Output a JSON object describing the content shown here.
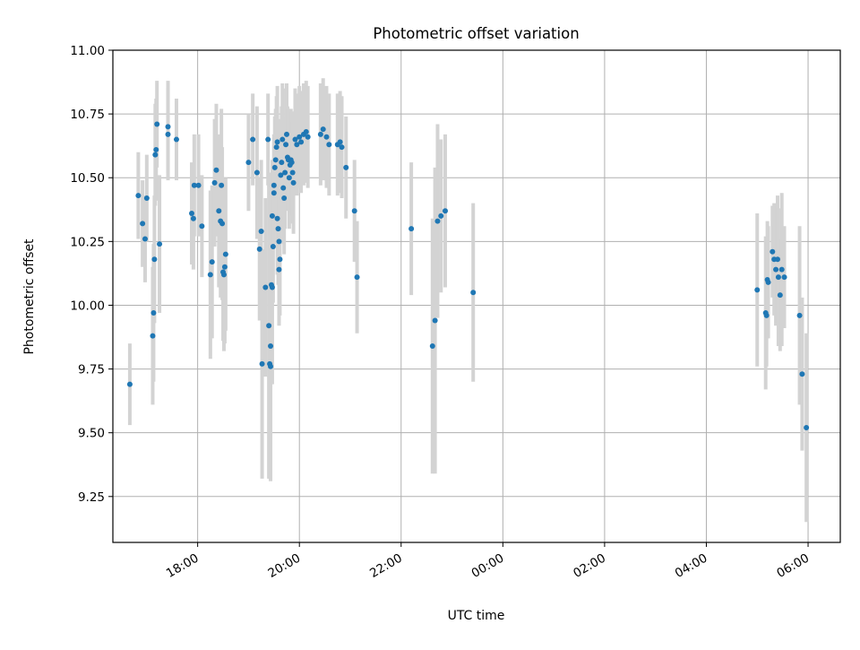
{
  "chart_data": {
    "type": "scatter",
    "title": "Photometric offset variation",
    "xlabel": "UTC time",
    "ylabel": "Photometric offset",
    "x_axis_kind": "time",
    "x_ticks": [
      "18:00",
      "20:00",
      "22:00",
      "00:00",
      "02:00",
      "04:00",
      "06:00"
    ],
    "y_ticks": [
      "9.25",
      "9.50",
      "9.75",
      "10.00",
      "10.25",
      "10.50",
      "10.75",
      "11.00"
    ],
    "ylim": [
      9.07,
      11.0
    ],
    "xlim": [
      "16:20",
      "06:38"
    ],
    "grid": true,
    "colors": {
      "points": "#1f77b4",
      "error_bars": "#d3d3d3",
      "grid": "#b0b0b0"
    },
    "series": [
      {
        "x": [
          "16:40",
          "16:50",
          "16:55",
          "16:58",
          "17:00",
          "17:07",
          "17:08",
          "17:09",
          "17:10",
          "17:11",
          "17:12",
          "17:15",
          "17:25",
          "17:25",
          "17:35",
          "17:53",
          "17:55",
          "17:56",
          "18:01",
          "18:05",
          "18:15",
          "18:17",
          "18:20",
          "18:22",
          "18:25",
          "18:27",
          "18:28",
          "18:29",
          "18:30",
          "18:31",
          "18:32",
          "18:33",
          "19:00",
          "19:05",
          "19:10",
          "19:13",
          "19:15",
          "19:16",
          "19:20",
          "19:23",
          "19:24",
          "19:25",
          "19:26",
          "19:26",
          "19:27",
          "19:28",
          "19:28",
          "19:29",
          "19:30",
          "19:30",
          "19:31",
          "19:32",
          "19:33",
          "19:34",
          "19:34",
          "19:35",
          "19:36",
          "19:36",
          "19:37",
          "19:38",
          "19:39",
          "19:40",
          "19:41",
          "19:42",
          "19:43",
          "19:44",
          "19:45",
          "19:46",
          "19:47",
          "19:48",
          "19:49",
          "19:50",
          "19:51",
          "19:52",
          "19:53",
          "19:55",
          "19:57",
          "20:00",
          "20:02",
          "20:05",
          "20:08",
          "20:10",
          "20:25",
          "20:28",
          "20:32",
          "20:35",
          "20:45",
          "20:48",
          "20:50",
          "20:55",
          "21:05",
          "21:08",
          "22:12",
          "22:37",
          "22:40",
          "22:43",
          "22:47",
          "22:52",
          "23:25",
          "05:00",
          "05:10",
          "05:11",
          "05:12",
          "05:13",
          "05:18",
          "05:20",
          "05:22",
          "05:24",
          "05:25",
          "05:27",
          "05:29",
          "05:32",
          "05:50",
          "05:53",
          "05:58"
        ],
        "y": [
          9.69,
          10.43,
          10.32,
          10.26,
          10.42,
          9.88,
          9.97,
          10.18,
          10.59,
          10.61,
          10.71,
          10.24,
          10.7,
          10.67,
          10.65,
          10.36,
          10.34,
          10.47,
          10.47,
          10.31,
          10.12,
          10.17,
          10.48,
          10.53,
          10.37,
          10.33,
          10.47,
          10.32,
          10.13,
          10.12,
          10.15,
          10.2,
          10.56,
          10.65,
          10.52,
          10.22,
          10.29,
          9.77,
          10.07,
          10.65,
          9.92,
          9.77,
          9.76,
          9.84,
          10.08,
          10.35,
          10.07,
          10.23,
          10.47,
          10.44,
          10.54,
          10.57,
          10.62,
          10.64,
          10.34,
          10.3,
          10.25,
          10.14,
          10.18,
          10.51,
          10.56,
          10.65,
          10.46,
          10.42,
          10.52,
          10.63,
          10.67,
          10.58,
          10.57,
          10.5,
          10.55,
          10.57,
          10.56,
          10.52,
          10.48,
          10.65,
          10.63,
          10.66,
          10.64,
          10.67,
          10.68,
          10.66,
          10.67,
          10.69,
          10.66,
          10.63,
          10.63,
          10.64,
          10.62,
          10.54,
          10.37,
          10.11,
          10.3,
          9.84,
          9.94,
          10.33,
          10.35,
          10.37,
          10.05,
          10.06,
          9.97,
          9.96,
          10.1,
          10.09,
          10.21,
          10.18,
          10.14,
          10.18,
          10.11,
          10.04,
          10.14,
          10.11,
          9.96,
          9.73,
          9.52
        ],
        "err": [
          0.16,
          0.17,
          0.17,
          0.17,
          0.17,
          0.27,
          0.27,
          0.25,
          0.2,
          0.2,
          0.17,
          0.27,
          0.18,
          0.18,
          0.16,
          0.2,
          0.2,
          0.2,
          0.2,
          0.2,
          0.33,
          0.3,
          0.25,
          0.26,
          0.3,
          0.3,
          0.3,
          0.3,
          0.27,
          0.3,
          0.3,
          0.3,
          0.19,
          0.18,
          0.26,
          0.28,
          0.28,
          0.45,
          0.35,
          0.18,
          0.6,
          0.45,
          0.45,
          0.5,
          0.35,
          0.22,
          0.38,
          0.22,
          0.2,
          0.2,
          0.2,
          0.2,
          0.2,
          0.22,
          0.22,
          0.22,
          0.22,
          0.22,
          0.22,
          0.22,
          0.22,
          0.22,
          0.22,
          0.22,
          0.22,
          0.22,
          0.2,
          0.2,
          0.2,
          0.2,
          0.2,
          0.2,
          0.2,
          0.2,
          0.2,
          0.2,
          0.2,
          0.2,
          0.2,
          0.2,
          0.2,
          0.2,
          0.2,
          0.2,
          0.2,
          0.2,
          0.2,
          0.2,
          0.2,
          0.2,
          0.2,
          0.22,
          0.26,
          0.5,
          0.6,
          0.38,
          0.3,
          0.3,
          0.35,
          0.3,
          0.3,
          0.2,
          0.23,
          0.22,
          0.18,
          0.22,
          0.22,
          0.25,
          0.27,
          0.22,
          0.3,
          0.2,
          0.35,
          0.3,
          0.37
        ]
      }
    ]
  }
}
